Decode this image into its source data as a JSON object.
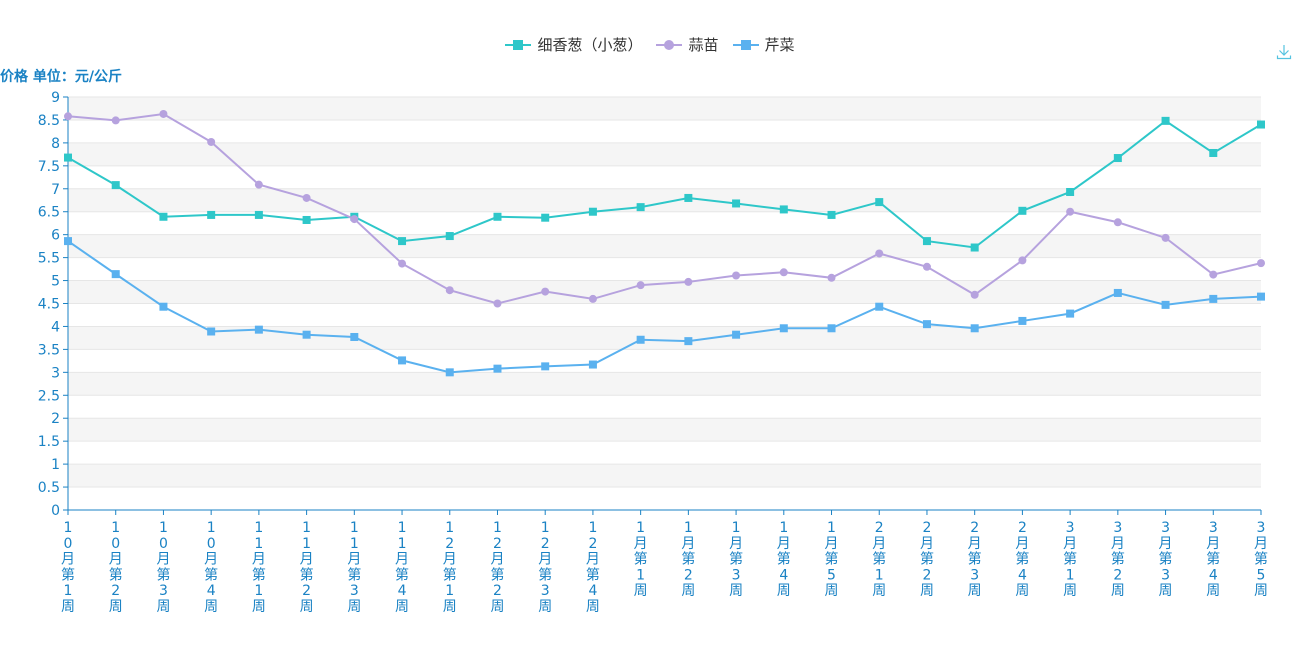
{
  "y_unit_label": "价格 单位：元/公斤",
  "icons": {
    "download": "download-icon"
  },
  "colors": {
    "axis": "#1a82c4",
    "grid_band": "#f5f5f5",
    "grid_line": "#e6e6e6"
  },
  "chart_data": {
    "type": "line",
    "categories": [
      "10月第1周",
      "10月第2周",
      "10月第3周",
      "10月第4周",
      "11月第1周",
      "11月第2周",
      "11月第3周",
      "11月第4周",
      "12月第1周",
      "12月第2周",
      "12月第3周",
      "12月第4周",
      "1月第1周",
      "1月第2周",
      "1月第3周",
      "1月第4周",
      "1月第5周",
      "2月第1周",
      "2月第2周",
      "2月第3周",
      "2月第4周",
      "3月第1周",
      "3月第2周",
      "3月第3周",
      "3月第4周",
      "3月第5周"
    ],
    "ylim": [
      0,
      9
    ],
    "yticks": [
      "0",
      "0.5",
      "1",
      "1.5",
      "2",
      "2.5",
      "3",
      "3.5",
      "4",
      "4.5",
      "5",
      "5.5",
      "6",
      "6.5",
      "7",
      "7.5",
      "8",
      "8.5",
      "9"
    ],
    "legend_position": "top-center",
    "grid": true,
    "series": [
      {
        "name": "细香葱（小葱）",
        "color": "#2ec7c9",
        "marker": "square",
        "values": [
          7.68,
          7.08,
          6.39,
          6.43,
          6.43,
          6.32,
          6.39,
          5.86,
          5.97,
          6.39,
          6.37,
          6.5,
          6.6,
          6.8,
          6.68,
          6.55,
          6.43,
          6.71,
          5.86,
          5.72,
          6.52,
          6.93,
          7.67,
          8.48,
          7.78,
          8.4
        ]
      },
      {
        "name": "蒜苗",
        "color": "#b6a2de",
        "marker": "circle",
        "values": [
          8.58,
          8.49,
          8.63,
          8.02,
          7.09,
          6.8,
          6.34,
          5.37,
          4.79,
          4.5,
          4.76,
          4.6,
          4.9,
          4.97,
          5.11,
          5.18,
          5.06,
          5.59,
          5.3,
          4.69,
          5.44,
          6.5,
          6.27,
          5.93,
          5.13,
          5.38
        ]
      },
      {
        "name": "芹菜",
        "color": "#5ab1ef",
        "marker": "square",
        "values": [
          5.86,
          5.14,
          4.43,
          3.89,
          3.93,
          3.82,
          3.77,
          3.26,
          3.0,
          3.08,
          3.13,
          3.17,
          3.71,
          3.68,
          3.82,
          3.96,
          3.96,
          4.43,
          4.05,
          3.96,
          4.12,
          4.28,
          4.73,
          4.47,
          4.6,
          4.65
        ]
      }
    ]
  }
}
